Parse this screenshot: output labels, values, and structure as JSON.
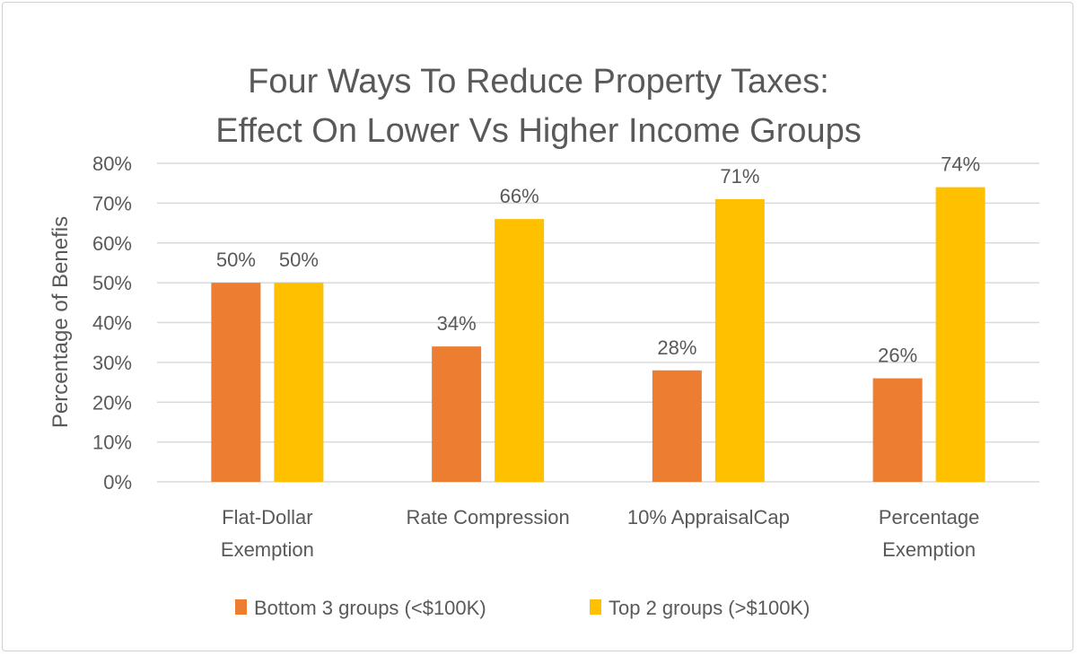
{
  "chart_data": {
    "type": "bar",
    "title": [
      "Four Ways To Reduce Property Taxes:",
      "Effect On Lower Vs Higher Income Groups"
    ],
    "ylabel": "Percentage of Benefis",
    "xlabel": "",
    "ylim": [
      0,
      0.8
    ],
    "yticks": [
      "0%",
      "10%",
      "20%",
      "30%",
      "40%",
      "50%",
      "60%",
      "70%",
      "80%"
    ],
    "grid": true,
    "legend_position": "bottom",
    "categories": [
      [
        "Flat-Dollar",
        "Exemption"
      ],
      [
        "Rate Compression"
      ],
      [
        "10% AppraisalCap"
      ],
      [
        "Percentage",
        "Exemption"
      ]
    ],
    "series": [
      {
        "name": "Bottom 3 groups (<$100K)",
        "color": "#ED7D31",
        "values": [
          0.5,
          0.34,
          0.28,
          0.26
        ],
        "labels": [
          "50%",
          "34%",
          "28%",
          "26%"
        ]
      },
      {
        "name": "Top 2 groups (>$100K)",
        "color": "#FFC000",
        "values": [
          0.5,
          0.66,
          0.71,
          0.74
        ],
        "labels": [
          "50%",
          "66%",
          "71%",
          "74%"
        ]
      }
    ]
  }
}
